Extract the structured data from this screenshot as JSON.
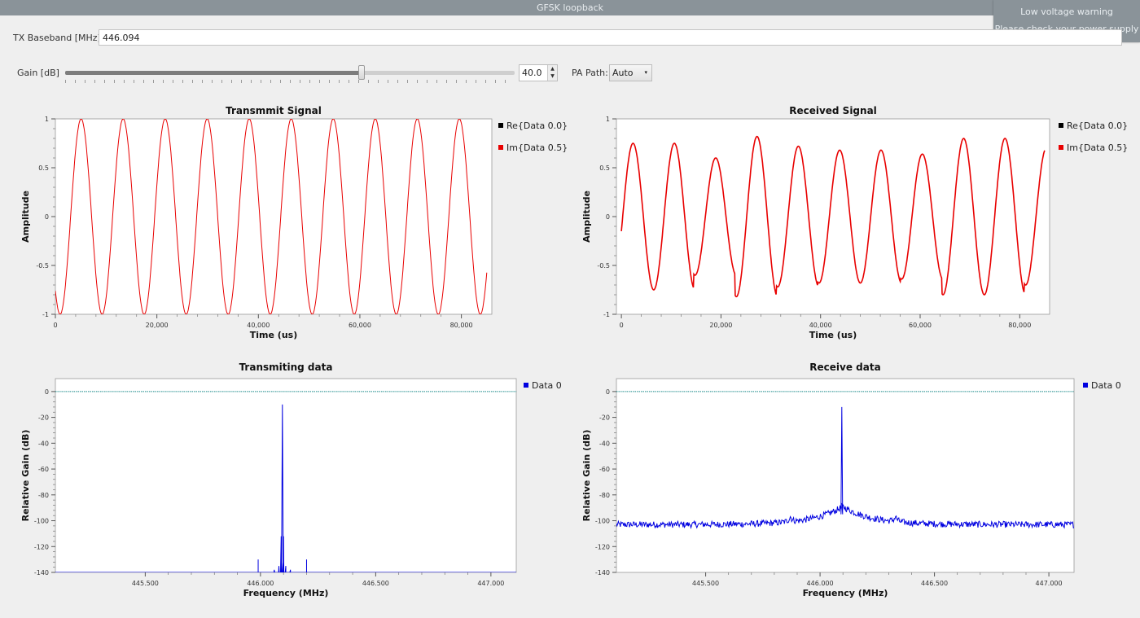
{
  "window": {
    "title": "GFSK loopback"
  },
  "notification": {
    "line1": "Low voltage warning",
    "line2": "Please check your power supply"
  },
  "controls": {
    "baseband_label": "TX Baseband [MHz]:",
    "baseband_value": "446.094",
    "gain_label": "Gain [dB]",
    "gain_value": "40.0",
    "gain_fraction": 0.66,
    "spin_up": "▲",
    "spin_down": "▼",
    "pa_label": "PA Path:",
    "pa_value": "Auto",
    "pa_arrow": "▾"
  },
  "colors": {
    "re": "#000000",
    "im": "#e80000",
    "spectrum": "#0000e0",
    "ref_line": "#1a8a8a"
  },
  "chart_data": [
    {
      "id": "tx_time",
      "type": "line",
      "title": "Transmmit Signal",
      "xlabel": "Time (us)",
      "ylabel": "Amplitude",
      "xlim": [
        0,
        86000
      ],
      "ylim": [
        -1,
        1
      ],
      "xticks": [
        0,
        20000,
        40000,
        60000,
        80000
      ],
      "xtick_labels": [
        "0",
        "20,000",
        "40,000",
        "60,000",
        "80,000"
      ],
      "yticks": [
        1,
        0.5,
        0,
        -0.5,
        -1
      ],
      "ytick_labels": [
        "1",
        "0.5",
        "0",
        "-0.5",
        "-1"
      ],
      "legend": [
        "Re{Data 0.0}",
        "Im{Data 0.5}"
      ],
      "legend_position": "right",
      "series": [
        {
          "name": "Im{Data 0.5}",
          "kind": "sine",
          "amplitudes": [
            1,
            1,
            1,
            1,
            1,
            1,
            1,
            1,
            1,
            1,
            1
          ],
          "period": 8280,
          "phase": -2.28,
          "x_end": 85000
        }
      ]
    },
    {
      "id": "rx_time",
      "type": "line",
      "title": "Received Signal",
      "xlabel": "Time (us)",
      "ylabel": "Amplitude",
      "xlim": [
        -1000,
        86000
      ],
      "ylim": [
        -1,
        1
      ],
      "xticks": [
        0,
        20000,
        40000,
        60000,
        80000
      ],
      "xtick_labels": [
        "0",
        "20,000",
        "40,000",
        "60,000",
        "80,000"
      ],
      "yticks": [
        1,
        0.5,
        0,
        -0.5,
        -1
      ],
      "ytick_labels": [
        "1",
        "0.5",
        "0",
        "-0.5",
        "-1"
      ],
      "legend": [
        "Re{Data 0.0}",
        "Im{Data 0.5}"
      ],
      "legend_position": "right",
      "series": [
        {
          "name": "Im{Data 0.5}",
          "kind": "sine",
          "amplitudes": [
            0.75,
            0.75,
            0.6,
            0.82,
            0.72,
            0.68,
            0.68,
            0.64,
            0.8,
            0.8,
            0.7
          ],
          "period": 8300,
          "phase": -0.2,
          "x_end": 85000
        }
      ]
    },
    {
      "id": "tx_freq",
      "type": "line",
      "title": "Transmiting data",
      "xlabel": "Frequency (MHz)",
      "ylabel": "Relative Gain (dB)",
      "xlim": [
        445.11,
        447.11
      ],
      "ylim": [
        -140,
        10
      ],
      "xticks": [
        445.5,
        446.0,
        446.5,
        447.0
      ],
      "xtick_labels": [
        "445.500",
        "446.000",
        "446.500",
        "447.000"
      ],
      "yticks": [
        0,
        -20,
        -40,
        -60,
        -80,
        -100,
        -120,
        -140
      ],
      "ytick_labels": [
        "0",
        "-20",
        "-40",
        "-60",
        "-80",
        "-100",
        "-120",
        "-140"
      ],
      "legend": [
        "Data 0"
      ],
      "legend_position": "right",
      "reference_line": 0,
      "series": [
        {
          "name": "Data 0",
          "kind": "spectrum",
          "floor": -140,
          "noise": 0,
          "peak": {
            "x": 446.095,
            "y": -10
          },
          "features": [
            [
              446.08,
              -135
            ],
            [
              446.09,
              -112
            ],
            [
              446.1,
              -112
            ],
            [
              446.11,
              -135
            ],
            [
              446.06,
              -138
            ],
            [
              446.13,
              -138
            ]
          ],
          "spurs": [
            [
              445.99,
              -130
            ],
            [
              446.2,
              -130
            ],
            [
              445.93,
              -140
            ],
            [
              446.31,
              -140
            ]
          ]
        }
      ]
    },
    {
      "id": "rx_freq",
      "type": "line",
      "title": "Receive data",
      "xlabel": "Frequency (MHz)",
      "ylabel": "Relative Gain (dB)",
      "xlim": [
        445.11,
        447.11
      ],
      "ylim": [
        -140,
        10
      ],
      "xticks": [
        445.5,
        446.0,
        446.5,
        447.0
      ],
      "xtick_labels": [
        "445.500",
        "446.000",
        "446.500",
        "447.000"
      ],
      "yticks": [
        0,
        -20,
        -40,
        -60,
        -80,
        -100,
        -120,
        -140
      ],
      "ytick_labels": [
        "0",
        "-20",
        "-40",
        "-60",
        "-80",
        "-100",
        "-120",
        "-140"
      ],
      "legend": [
        "Data 0"
      ],
      "legend_position": "right",
      "reference_line": 0,
      "series": [
        {
          "name": "Data 0",
          "kind": "spectrum",
          "floor": -103,
          "noise": 2.5,
          "peak": {
            "x": 446.095,
            "y": -12
          },
          "bumps": [
            [
              446.1,
              14,
              0.28
            ],
            [
              445.87,
              4,
              0.02
            ],
            [
              446.33,
              4,
              0.02
            ]
          ],
          "features": [],
          "spurs": []
        }
      ]
    }
  ]
}
